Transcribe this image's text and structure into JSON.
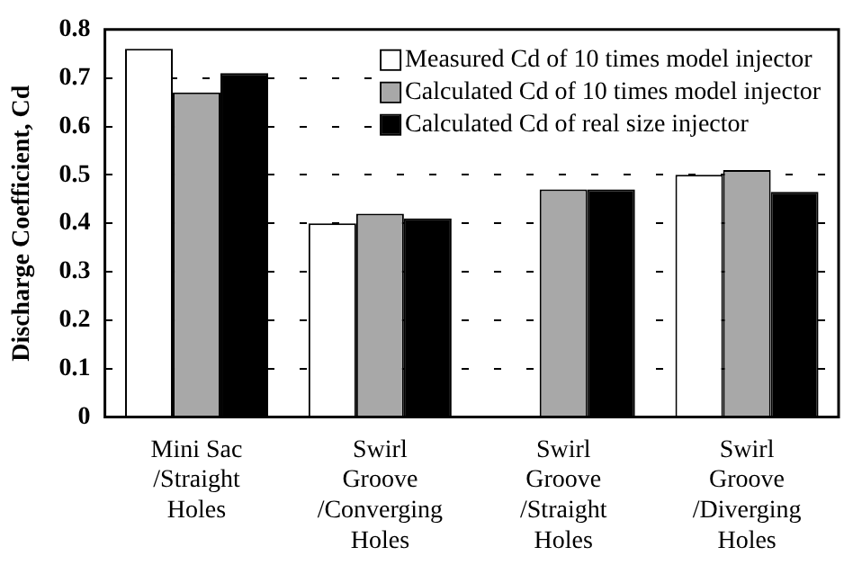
{
  "chart_data": {
    "type": "bar",
    "ylabel": "Discharge Coefficient, Cd",
    "categories": [
      "Mini Sac\n/Straight\nHoles",
      "Swirl\nGroove\n/Converging\nHoles",
      "Swirl\nGroove\n/Straight\nHoles",
      "Swirl\nGroove\n/Diverging\nHoles"
    ],
    "series": [
      {
        "name": "Measured Cd of 10 times model injector",
        "color": "#ffffff",
        "values": [
          0.76,
          0.4,
          null,
          0.5
        ]
      },
      {
        "name": "Calculated Cd of 10 times model injector",
        "color": "#a8a8a8",
        "values": [
          0.67,
          0.42,
          0.47,
          0.51
        ]
      },
      {
        "name": "Calculated Cd of real size injector",
        "color": "#000000",
        "values": [
          0.71,
          0.41,
          0.47,
          0.465
        ]
      }
    ],
    "ylim": [
      0,
      0.8
    ],
    "yticks": [
      0,
      0.1,
      0.2,
      0.3,
      0.4,
      0.5,
      0.6,
      0.7,
      0.8
    ],
    "grid": "y",
    "legend": "top right"
  }
}
